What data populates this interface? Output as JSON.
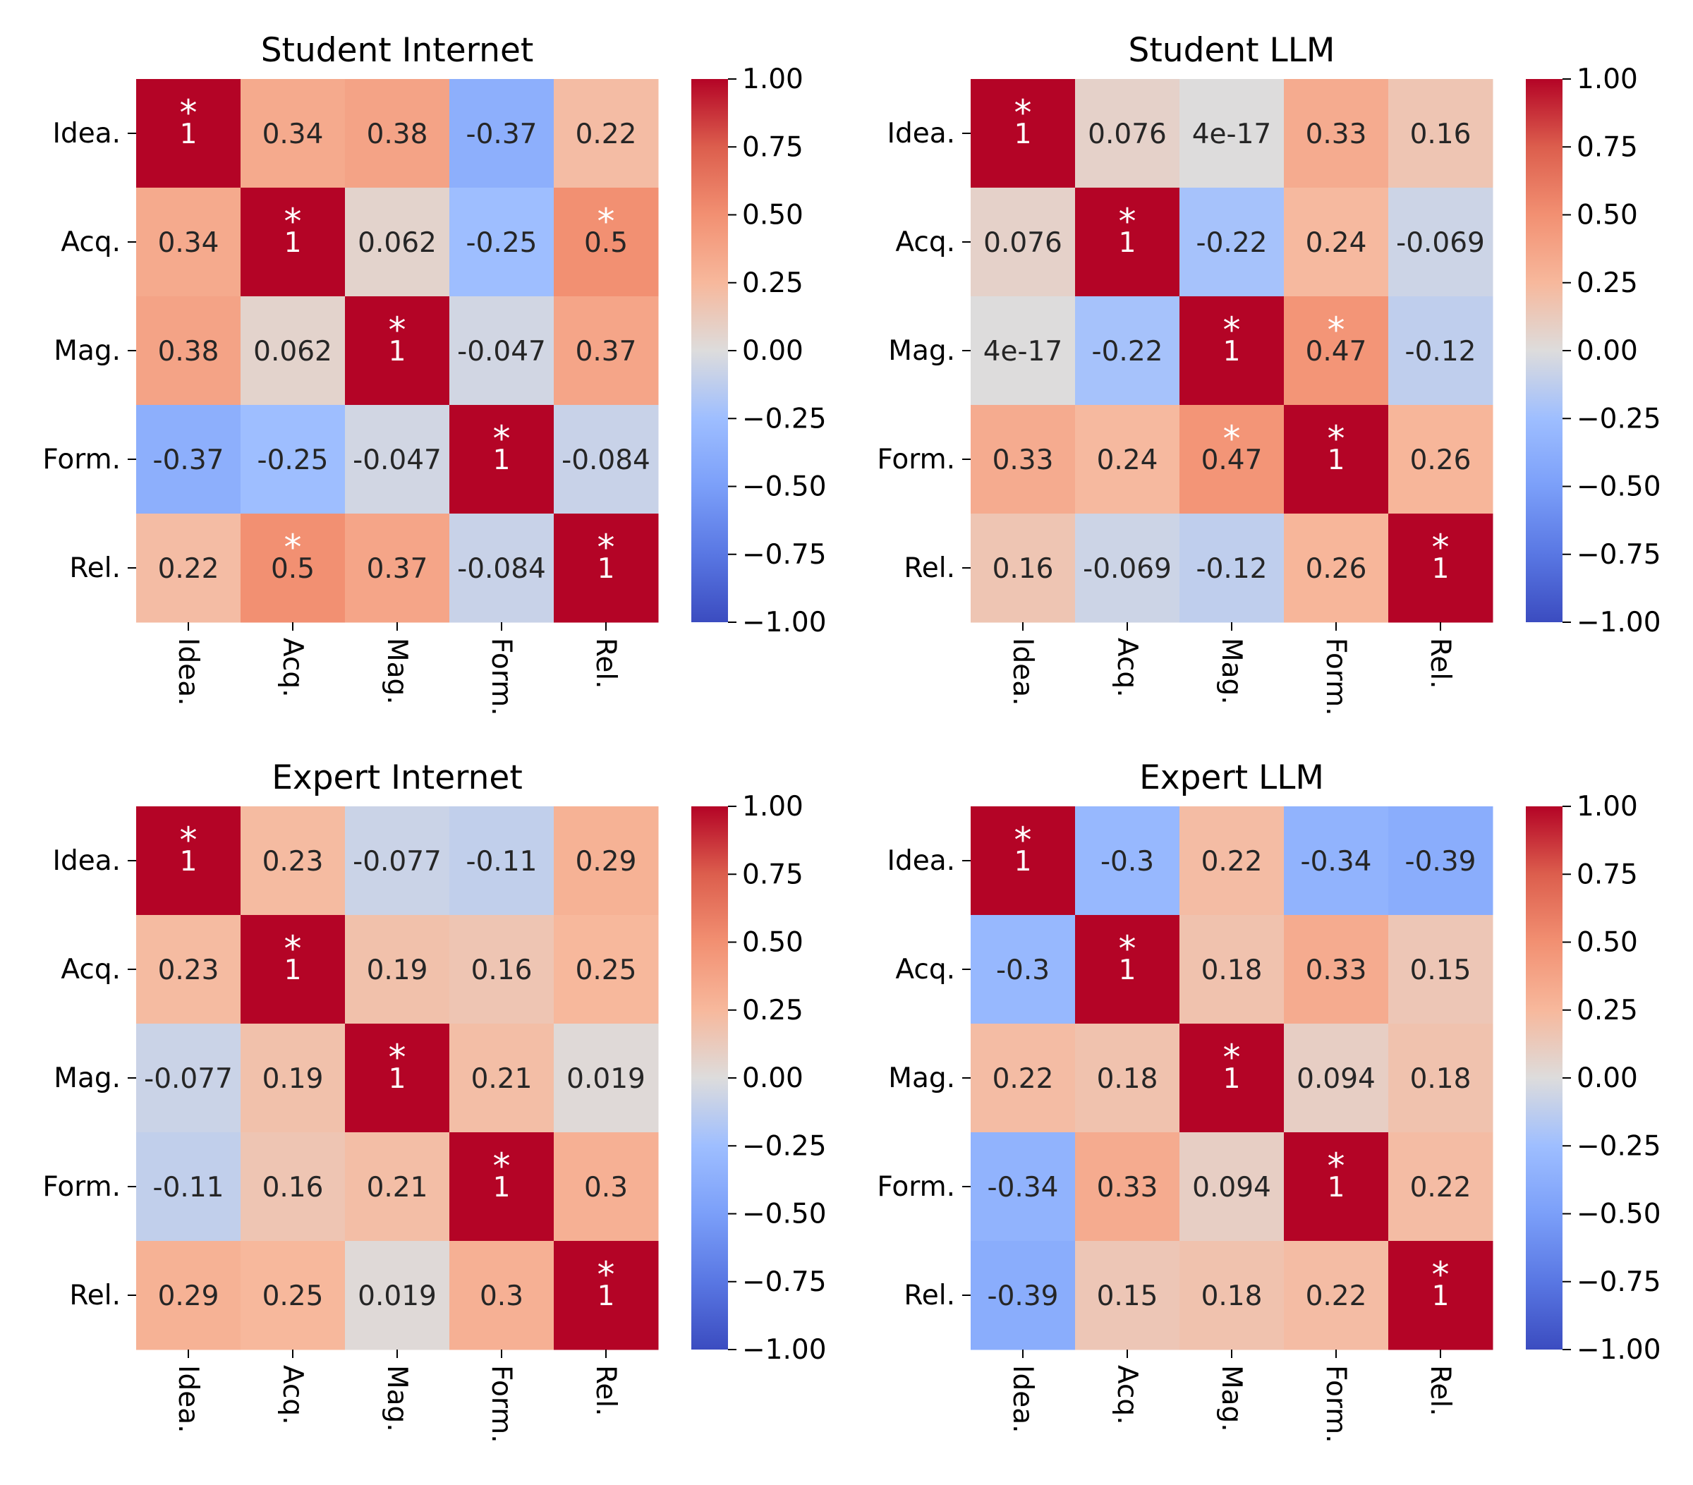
{
  "colorscale": {
    "name": "coolwarm",
    "vmin": -1.0,
    "vmax": 1.0,
    "stops": [
      [
        -1.0,
        "#3b4cc0"
      ],
      [
        -0.75,
        "#5977e3"
      ],
      [
        -0.5,
        "#7b9ff9"
      ],
      [
        -0.25,
        "#9ebeff"
      ],
      [
        0.0,
        "#dddcdc"
      ],
      [
        0.25,
        "#f7b89c"
      ],
      [
        0.5,
        "#f29072"
      ],
      [
        0.75,
        "#dc5e4d"
      ],
      [
        1.0,
        "#b40426"
      ]
    ],
    "ticks": [
      "1.00",
      "0.75",
      "0.50",
      "0.25",
      "0.00",
      "−0.25",
      "−0.50",
      "−0.75",
      "−1.00"
    ]
  },
  "chart_data": [
    {
      "type": "heatmap",
      "title": "Student Internet",
      "categories": [
        "Idea.",
        "Acq.",
        "Mag.",
        "Form.",
        "Rel."
      ],
      "values": [
        [
          1,
          0.34,
          0.38,
          -0.37,
          0.22
        ],
        [
          0.34,
          1,
          0.062,
          -0.25,
          0.5
        ],
        [
          0.38,
          0.062,
          1,
          -0.047,
          0.37
        ],
        [
          -0.37,
          -0.25,
          -0.047,
          1,
          -0.084
        ],
        [
          0.22,
          0.5,
          0.37,
          -0.084,
          1
        ]
      ],
      "labels": [
        [
          "1",
          "0.34",
          "0.38",
          "-0.37",
          "0.22"
        ],
        [
          "0.34",
          "1",
          "0.062",
          "-0.25",
          "0.5"
        ],
        [
          "0.38",
          "0.062",
          "1",
          "-0.047",
          "0.37"
        ],
        [
          "-0.37",
          "-0.25",
          "-0.047",
          "1",
          "-0.084"
        ],
        [
          "0.22",
          "0.5",
          "0.37",
          "-0.084",
          "1"
        ]
      ],
      "significant": [
        [
          0,
          0
        ],
        [
          1,
          1
        ],
        [
          1,
          4
        ],
        [
          2,
          2
        ],
        [
          3,
          3
        ],
        [
          4,
          1
        ],
        [
          4,
          4
        ]
      ],
      "marker": "*"
    },
    {
      "type": "heatmap",
      "title": "Student LLM",
      "categories": [
        "Idea.",
        "Acq.",
        "Mag.",
        "Form.",
        "Rel."
      ],
      "values": [
        [
          1,
          0.076,
          4e-17,
          0.33,
          0.16
        ],
        [
          0.076,
          1,
          -0.22,
          0.24,
          -0.069
        ],
        [
          4e-17,
          -0.22,
          1,
          0.47,
          -0.12
        ],
        [
          0.33,
          0.24,
          0.47,
          1,
          0.26
        ],
        [
          0.16,
          -0.069,
          -0.12,
          0.26,
          1
        ]
      ],
      "labels": [
        [
          "1",
          "0.076",
          "4e-17",
          "0.33",
          "0.16"
        ],
        [
          "0.076",
          "1",
          "-0.22",
          "0.24",
          "-0.069"
        ],
        [
          "4e-17",
          "-0.22",
          "1",
          "0.47",
          "-0.12"
        ],
        [
          "0.33",
          "0.24",
          "0.47",
          "1",
          "0.26"
        ],
        [
          "0.16",
          "-0.069",
          "-0.12",
          "0.26",
          "1"
        ]
      ],
      "significant": [
        [
          0,
          0
        ],
        [
          1,
          1
        ],
        [
          2,
          2
        ],
        [
          2,
          3
        ],
        [
          3,
          2
        ],
        [
          3,
          3
        ],
        [
          4,
          4
        ]
      ],
      "marker": "*"
    },
    {
      "type": "heatmap",
      "title": "Expert Internet",
      "categories": [
        "Idea.",
        "Acq.",
        "Mag.",
        "Form.",
        "Rel."
      ],
      "values": [
        [
          1,
          0.23,
          -0.077,
          -0.11,
          0.29
        ],
        [
          0.23,
          1,
          0.19,
          0.16,
          0.25
        ],
        [
          -0.077,
          0.19,
          1,
          0.21,
          0.019
        ],
        [
          -0.11,
          0.16,
          0.21,
          1,
          0.3
        ],
        [
          0.29,
          0.25,
          0.019,
          0.3,
          1
        ]
      ],
      "labels": [
        [
          "1",
          "0.23",
          "-0.077",
          "-0.11",
          "0.29"
        ],
        [
          "0.23",
          "1",
          "0.19",
          "0.16",
          "0.25"
        ],
        [
          "-0.077",
          "0.19",
          "1",
          "0.21",
          "0.019"
        ],
        [
          "-0.11",
          "0.16",
          "0.21",
          "1",
          "0.3"
        ],
        [
          "0.29",
          "0.25",
          "0.019",
          "0.3",
          "1"
        ]
      ],
      "significant": [
        [
          0,
          0
        ],
        [
          1,
          1
        ],
        [
          2,
          2
        ],
        [
          3,
          3
        ],
        [
          4,
          4
        ]
      ],
      "marker": "*"
    },
    {
      "type": "heatmap",
      "title": "Expert LLM",
      "categories": [
        "Idea.",
        "Acq.",
        "Mag.",
        "Form.",
        "Rel."
      ],
      "values": [
        [
          1,
          -0.3,
          0.22,
          -0.34,
          -0.39
        ],
        [
          -0.3,
          1,
          0.18,
          0.33,
          0.15
        ],
        [
          0.22,
          0.18,
          1,
          0.094,
          0.18
        ],
        [
          -0.34,
          0.33,
          0.094,
          1,
          0.22
        ],
        [
          -0.39,
          0.15,
          0.18,
          0.22,
          1
        ]
      ],
      "labels": [
        [
          "1",
          "-0.3",
          "0.22",
          "-0.34",
          "-0.39"
        ],
        [
          "-0.3",
          "1",
          "0.18",
          "0.33",
          "0.15"
        ],
        [
          "0.22",
          "0.18",
          "1",
          "0.094",
          "0.18"
        ],
        [
          "-0.34",
          "0.33",
          "0.094",
          "1",
          "0.22"
        ],
        [
          "-0.39",
          "0.15",
          "0.18",
          "0.22",
          "1"
        ]
      ],
      "significant": [
        [
          0,
          0
        ],
        [
          1,
          1
        ],
        [
          2,
          2
        ],
        [
          3,
          3
        ],
        [
          4,
          4
        ]
      ],
      "marker": "*"
    }
  ]
}
